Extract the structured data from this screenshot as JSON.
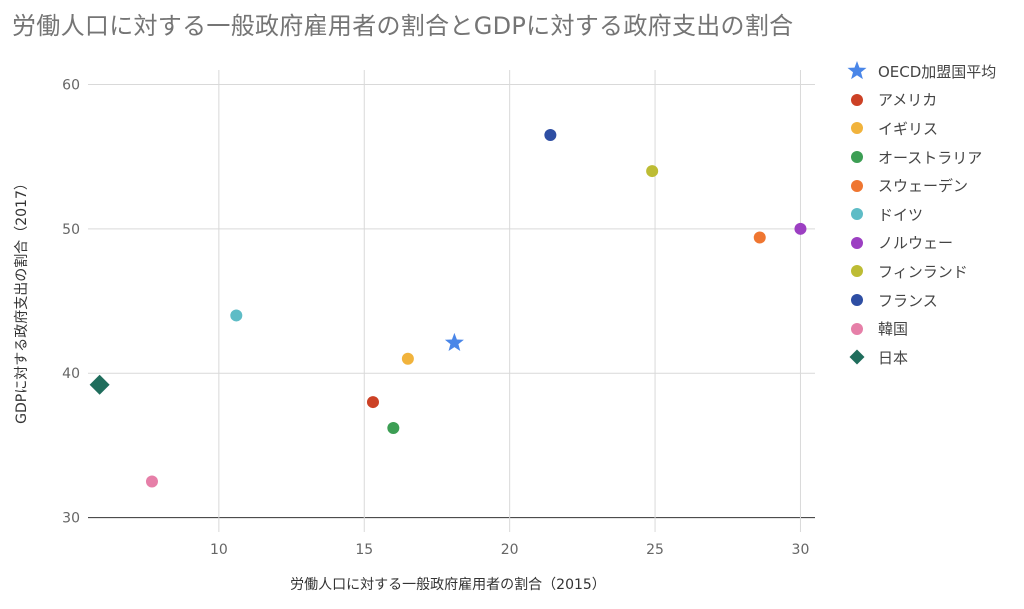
{
  "chart_data": {
    "type": "scatter",
    "title": "労働人口に対する一般政府雇用者の割合とGDPに対する政府支出の割合",
    "xlabel": "労働人口に対する一般政府雇用者の割合（2015）",
    "ylabel": "GDPに対する政府支出の割合（2017）",
    "xlim": [
      5.5,
      30.5
    ],
    "ylim": [
      29,
      61
    ],
    "xticks": [
      10,
      15,
      20,
      25,
      30
    ],
    "yticks": [
      30,
      40,
      50,
      60
    ],
    "xtick_labels": [
      "10",
      "15",
      "20",
      "25",
      "30"
    ],
    "ytick_labels": [
      "30",
      "40",
      "50",
      "60"
    ],
    "grid": true,
    "legend_position": "right",
    "series": [
      {
        "name": "OECD加盟国平均",
        "x": 18.1,
        "y": 42.1,
        "marker": "star",
        "color": "#4a86e8"
      },
      {
        "name": "アメリカ",
        "x": 15.3,
        "y": 38.0,
        "marker": "circle",
        "color": "#cc4125"
      },
      {
        "name": "イギリス",
        "x": 16.5,
        "y": 41.0,
        "marker": "circle",
        "color": "#f1b33c"
      },
      {
        "name": "オーストラリア",
        "x": 16.0,
        "y": 36.2,
        "marker": "circle",
        "color": "#3c9e54"
      },
      {
        "name": "スウェーデン",
        "x": 28.6,
        "y": 49.4,
        "marker": "circle",
        "color": "#ef7631"
      },
      {
        "name": "ドイツ",
        "x": 10.6,
        "y": 44.0,
        "marker": "circle",
        "color": "#5ebcc6"
      },
      {
        "name": "ノルウェー",
        "x": 30.0,
        "y": 50.0,
        "marker": "circle",
        "color": "#9c3fc2"
      },
      {
        "name": "フィンランド",
        "x": 24.9,
        "y": 54.0,
        "marker": "circle",
        "color": "#bdbc34"
      },
      {
        "name": "フランス",
        "x": 21.4,
        "y": 56.5,
        "marker": "circle",
        "color": "#2e4ea3"
      },
      {
        "name": "韓国",
        "x": 7.7,
        "y": 32.5,
        "marker": "circle",
        "color": "#e67fa8"
      },
      {
        "name": "日本",
        "x": 5.9,
        "y": 39.2,
        "marker": "diamond",
        "color": "#1f6d5c"
      }
    ]
  }
}
